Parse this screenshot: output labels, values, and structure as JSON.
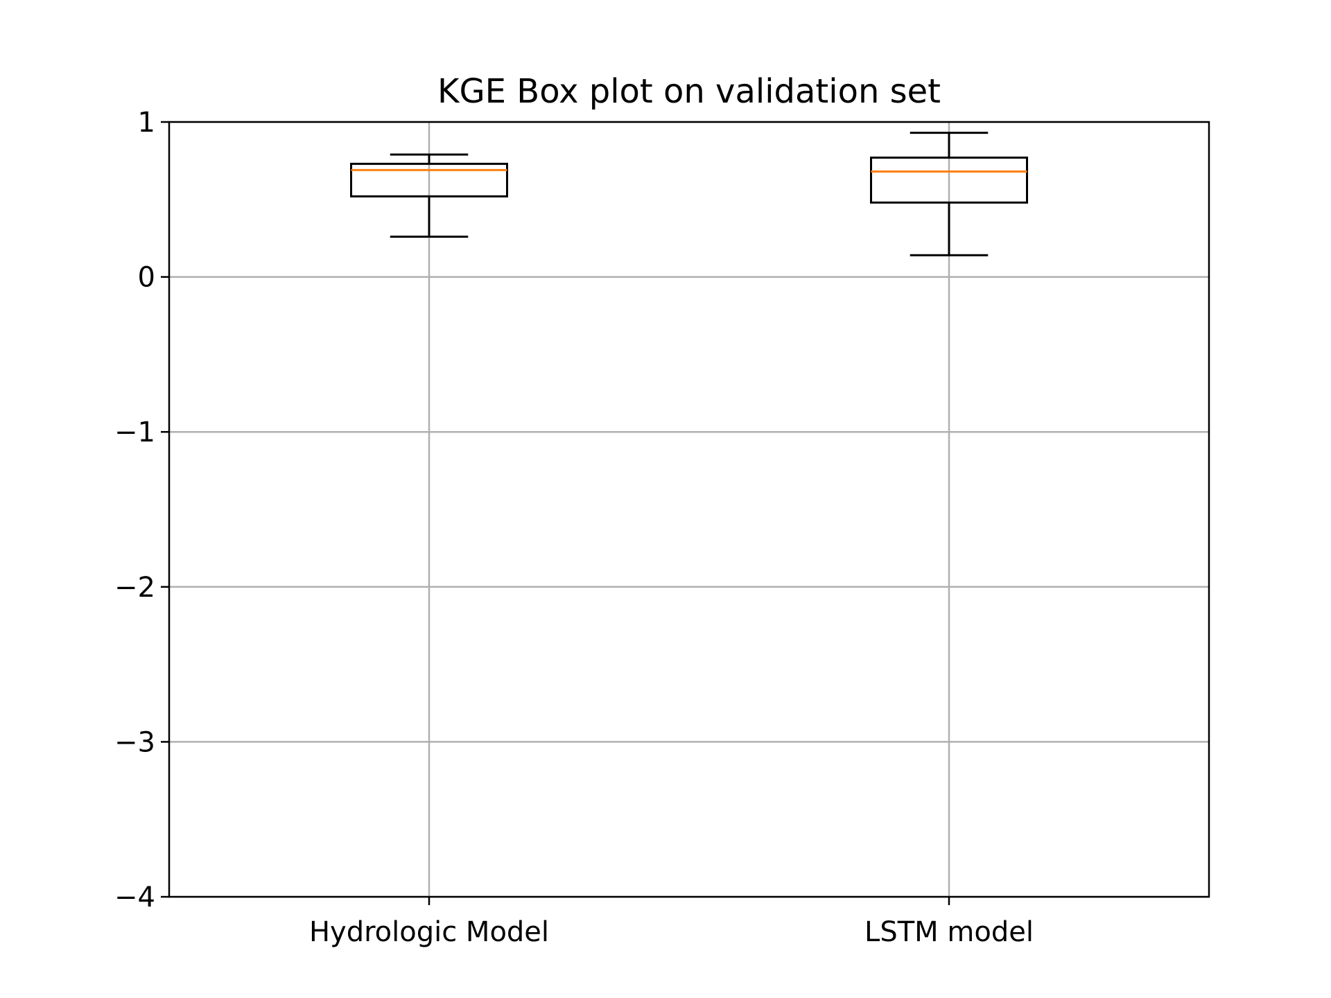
{
  "chart_data": {
    "type": "box",
    "title": "KGE Box plot on validation set",
    "xlabel": "",
    "ylabel": "",
    "ylim": [
      -4,
      1
    ],
    "grid": true,
    "categories": [
      "Hydrologic Model",
      "LSTM model"
    ],
    "y_ticks": [
      1,
      0,
      -1,
      -2,
      -3,
      -4
    ],
    "y_tick_labels": [
      "1",
      "0",
      "−1",
      "−2",
      "−3",
      "−4"
    ],
    "boxes": [
      {
        "name": "Hydrologic Model",
        "whisker_low": 0.26,
        "q1": 0.52,
        "median": 0.69,
        "q3": 0.73,
        "whisker_high": 0.79
      },
      {
        "name": "LSTM model",
        "whisker_low": 0.14,
        "q1": 0.48,
        "median": 0.68,
        "q3": 0.77,
        "whisker_high": 0.93
      }
    ],
    "colors": {
      "box": "#000000",
      "median": "#ff7f0e",
      "grid": "#b0b0b0",
      "axis": "#000000"
    }
  }
}
